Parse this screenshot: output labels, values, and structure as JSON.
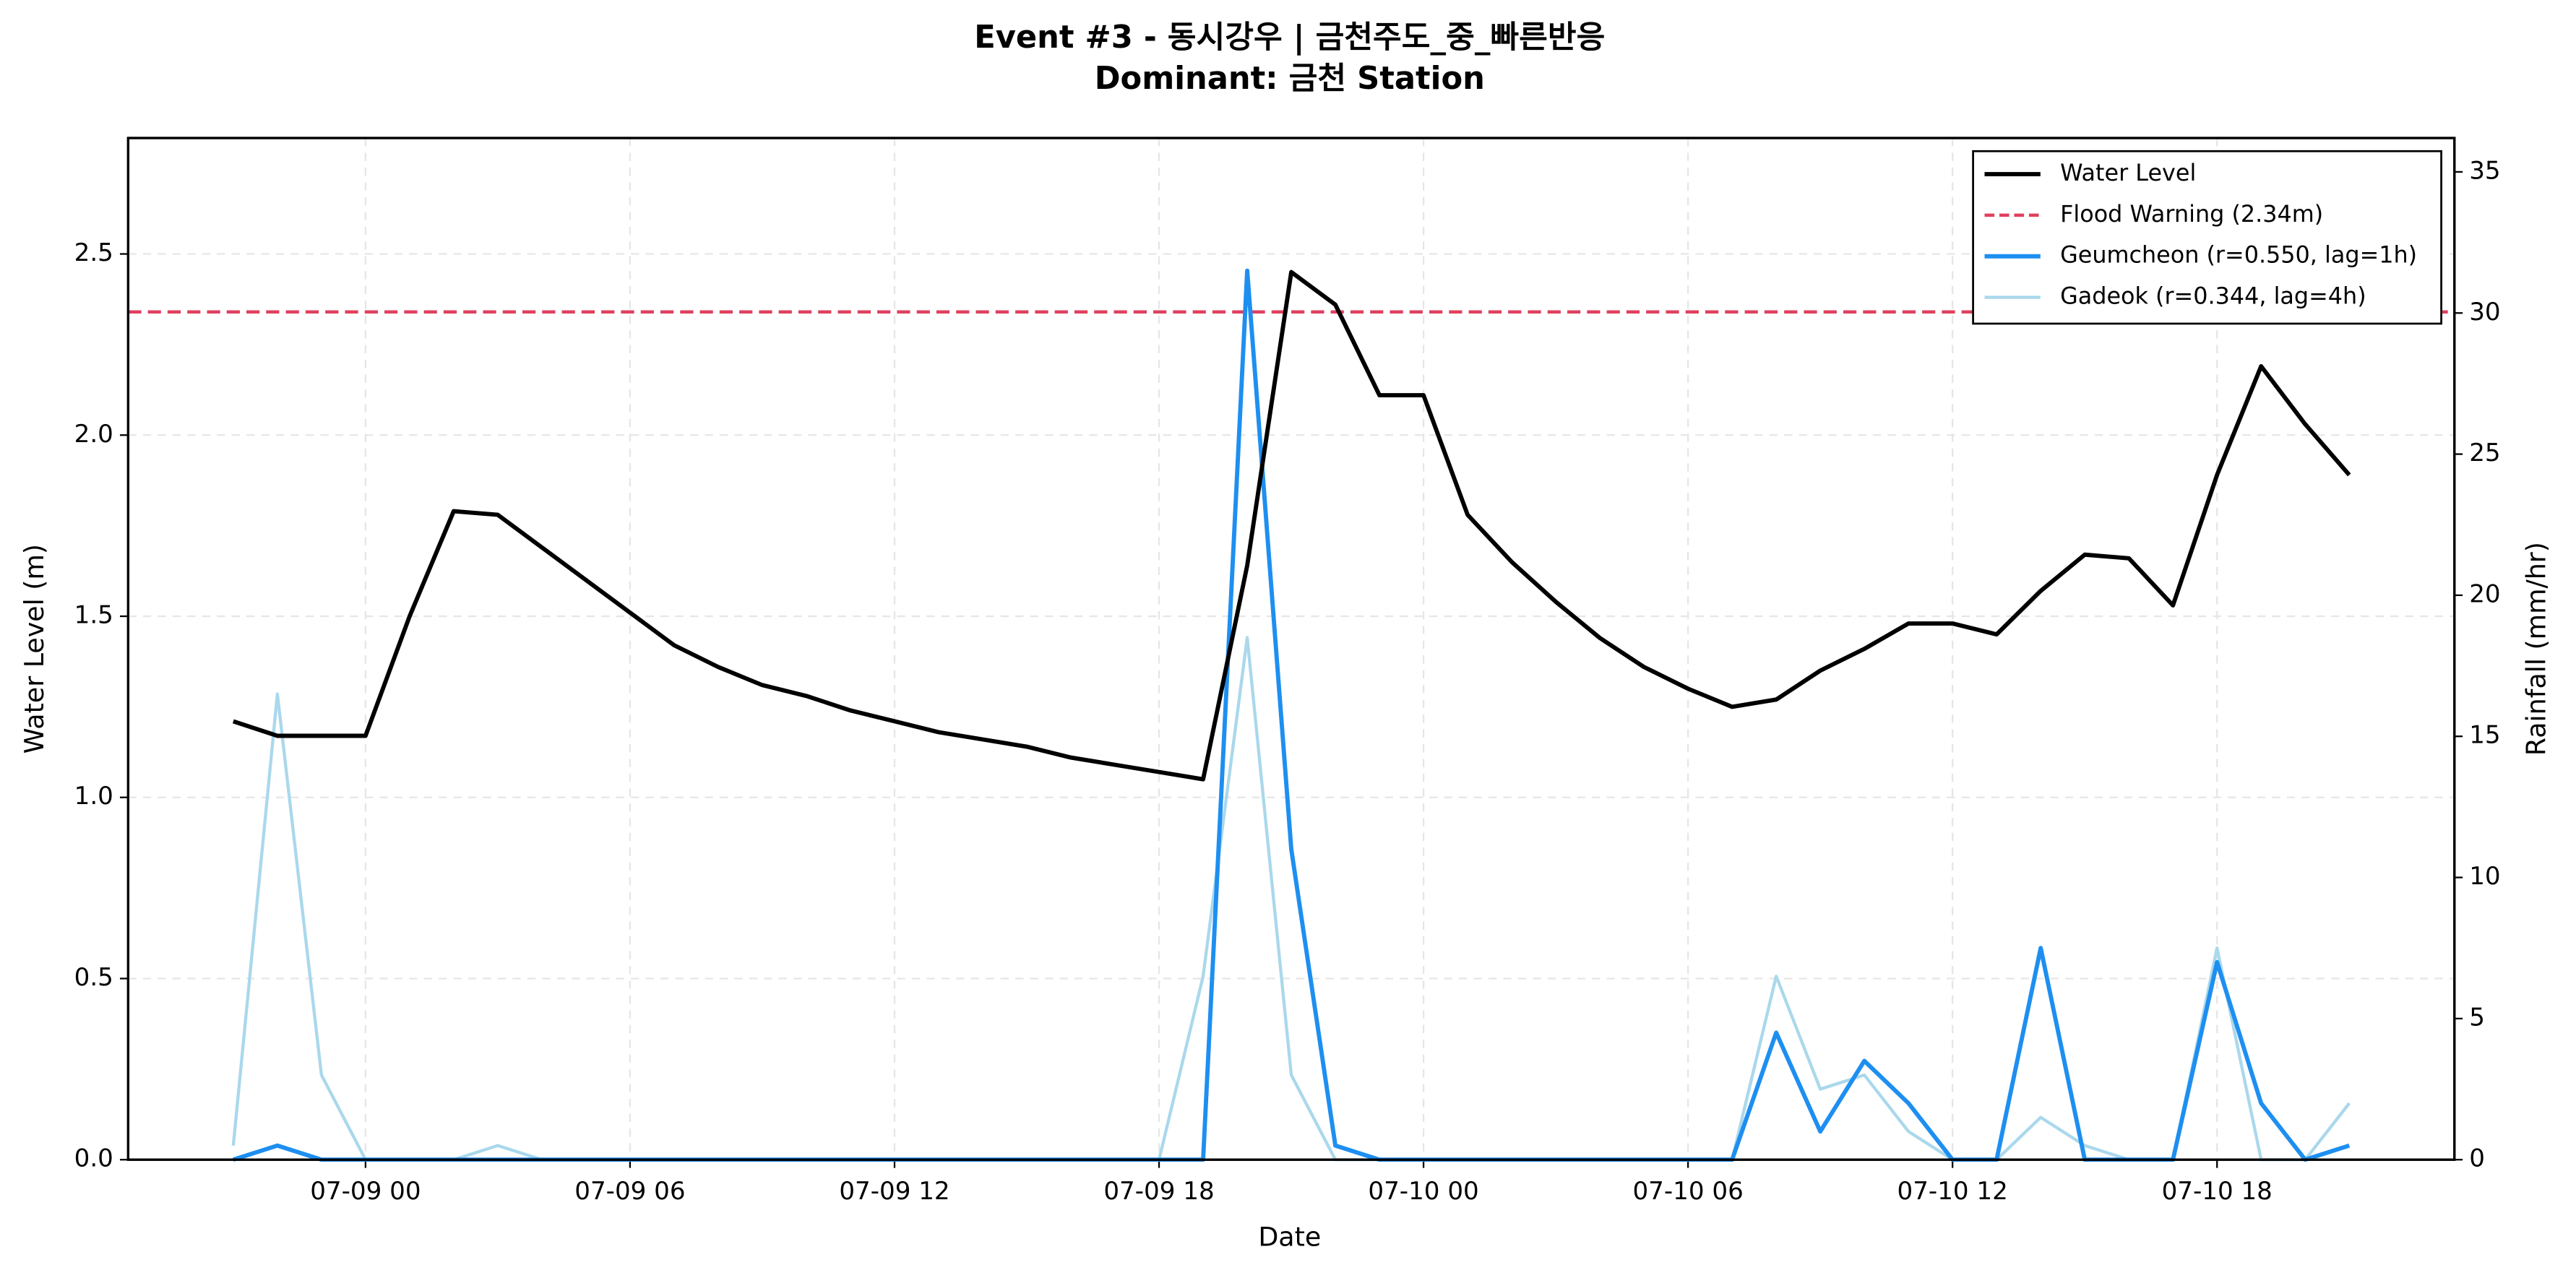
{
  "chart_data": {
    "type": "line",
    "title": "Event #3 - 동시강우 | 금천주도_중_빠른반응",
    "subtitle": "Dominant: 금천 Station",
    "x_label": "Date",
    "y_label": "Water Level (m)",
    "y2_label": "Rainfall (mm/hr)",
    "x": [
      "07-08 21",
      "07-08 22",
      "07-08 23",
      "07-09 00",
      "07-09 01",
      "07-09 02",
      "07-09 03",
      "07-09 04",
      "07-09 05",
      "07-09 06",
      "07-09 07",
      "07-09 08",
      "07-09 09",
      "07-09 10",
      "07-09 11",
      "07-09 12",
      "07-09 13",
      "07-09 14",
      "07-09 15",
      "07-09 16",
      "07-09 17",
      "07-09 18",
      "07-09 19",
      "07-09 20",
      "07-09 21",
      "07-09 22",
      "07-09 23",
      "07-10 00",
      "07-10 01",
      "07-10 02",
      "07-10 03",
      "07-10 04",
      "07-10 05",
      "07-10 06",
      "07-10 07",
      "07-10 08",
      "07-10 09",
      "07-10 10",
      "07-10 11",
      "07-10 12",
      "07-10 13",
      "07-10 14",
      "07-10 15",
      "07-10 16",
      "07-10 17",
      "07-10 18",
      "07-10 19",
      "07-10 20",
      "07-10 21"
    ],
    "xticks": [
      "07-09 00",
      "07-09 06",
      "07-09 12",
      "07-09 18",
      "07-10 00",
      "07-10 06",
      "07-10 12",
      "07-10 18"
    ],
    "ylim": [
      0,
      2.82
    ],
    "yticks": [
      {
        "value": 0,
        "label": "0.0"
      },
      0.5,
      {
        "value": 1,
        "label": "1.0"
      },
      1.5,
      {
        "value": 2,
        "label": "2.0"
      },
      2.5
    ],
    "y2lim": [
      0,
      36.2
    ],
    "y2ticks": [
      0,
      5,
      10,
      15,
      20,
      25,
      30,
      35
    ],
    "grid": true,
    "legend": "upper right",
    "series": [
      {
        "name": "Water Level",
        "color": "#000000",
        "axis": "y",
        "values": [
          1.21,
          1.17,
          1.17,
          1.17,
          1.5,
          1.79,
          1.78,
          1.69,
          1.6,
          1.51,
          1.42,
          1.36,
          1.31,
          1.28,
          1.24,
          1.21,
          1.18,
          1.16,
          1.14,
          1.11,
          1.09,
          1.07,
          1.05,
          1.64,
          2.45,
          2.36,
          2.11,
          2.11,
          1.78,
          1.65,
          1.54,
          1.44,
          1.36,
          1.3,
          1.25,
          1.27,
          1.35,
          1.41,
          1.48,
          1.48,
          1.45,
          1.57,
          1.67,
          1.66,
          1.53,
          1.89,
          2.19,
          2.03,
          1.89
        ]
      },
      {
        "name": "Geumcheon (r=0.550, lag=1h)",
        "color": "#1e8ff0",
        "axis": "y2",
        "values": [
          0,
          0.5,
          0,
          0,
          0,
          0,
          0,
          0,
          0,
          0,
          0,
          0,
          0,
          0,
          0,
          0,
          0,
          0,
          0,
          0,
          0,
          0,
          0,
          31.5,
          11.0,
          0.5,
          0,
          0,
          0,
          0,
          0,
          0,
          0,
          0,
          0,
          4.5,
          1.0,
          3.5,
          2.0,
          0,
          0,
          7.5,
          0,
          0,
          0,
          7.0,
          2.0,
          0,
          0.5
        ]
      },
      {
        "name": "Gadeok (r=0.344, lag=4h)",
        "color": "#aad8ec",
        "axis": "y2",
        "values": [
          0.5,
          16.5,
          3.0,
          0,
          0,
          0,
          0.5,
          0,
          0,
          0,
          0,
          0,
          0,
          0,
          0,
          0,
          0,
          0,
          0,
          0,
          0,
          0,
          6.5,
          18.5,
          3.0,
          0,
          0,
          0,
          0,
          0,
          0,
          0,
          0,
          0,
          0,
          6.5,
          2.5,
          3.0,
          1.0,
          0,
          0,
          1.5,
          0.5,
          0,
          0,
          7.5,
          0,
          0,
          2.0
        ]
      }
    ],
    "reference_line": {
      "name": "Flood Warning (2.34m)",
      "value": 2.34,
      "color": "#e0405e"
    }
  }
}
